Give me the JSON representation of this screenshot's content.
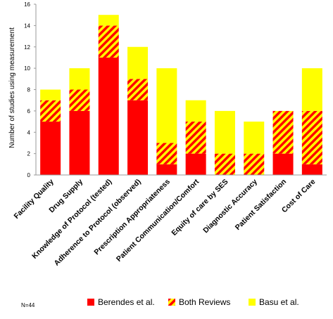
{
  "chart_data": {
    "type": "bar",
    "stacked": true,
    "categories": [
      "Facility Quality",
      "Drug Supply",
      "Knowledge of Protocol (tested)",
      "Adherence to Protocol (observed)",
      "Prescription Appropriateness",
      "Patient Communication/Comfort",
      "Equity of care by SES",
      "Diagnostic Accuracy",
      "Patient Satisfaction",
      "Cost of Care"
    ],
    "series": [
      {
        "name": "Berendes et al.",
        "color": "#ff0000",
        "pattern": "solid",
        "values": [
          5,
          6,
          11,
          7,
          1,
          2,
          0,
          0,
          2,
          1
        ]
      },
      {
        "name": "Both Reviews",
        "color": "#ff0000",
        "color2": "#ffff00",
        "pattern": "diagonal-stripes",
        "values": [
          2,
          2,
          3,
          2,
          2,
          3,
          2,
          2,
          4,
          5
        ]
      },
      {
        "name": "Basu et al.",
        "color": "#ffff00",
        "pattern": "solid",
        "values": [
          1,
          2,
          1,
          3,
          7,
          2,
          4,
          3,
          0,
          4
        ]
      }
    ],
    "ylabel": "Number of studies using measurement",
    "xlabel": "",
    "title": "",
    "ylim": [
      0,
      16
    ],
    "yticks": [
      "0",
      "2",
      "4",
      "6",
      "8",
      "10",
      "12",
      "14",
      "16"
    ],
    "grid": false,
    "legend_position": "bottom",
    "note": "N=44"
  }
}
